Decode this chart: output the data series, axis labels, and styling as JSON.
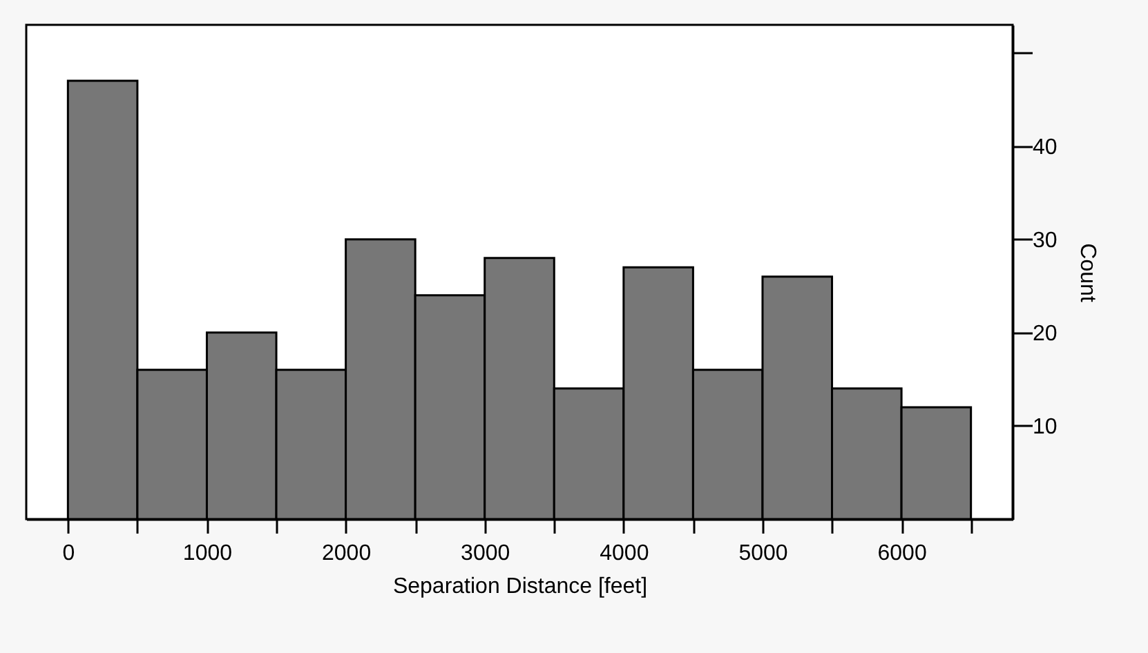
{
  "chart_data": {
    "type": "histogram",
    "xlabel": "Separation Distance [feet]",
    "ylabel": "Count",
    "bins": [
      0,
      500,
      1000,
      1500,
      2000,
      2500,
      3000,
      3500,
      4000,
      4500,
      5000,
      5500,
      6000,
      6500
    ],
    "values": [
      47,
      16,
      20,
      16,
      30,
      24,
      28,
      14,
      27,
      16,
      26,
      14,
      12
    ],
    "color": "#777777",
    "xlim": [
      -300,
      6800
    ],
    "xticks": [
      0,
      {
        "value": 500,
        "label": null
      },
      1000,
      {
        "value": 1500,
        "label": null
      },
      2000,
      {
        "value": 2500,
        "label": null
      },
      3000,
      {
        "value": 3500,
        "label": null
      },
      4000,
      {
        "value": 4500,
        "label": null
      },
      5000,
      {
        "value": 5500,
        "label": null
      },
      6000,
      {
        "value": 6500,
        "label": null
      }
    ],
    "ylim": [
      0,
      53
    ],
    "yticks": [
      10,
      20,
      30,
      40,
      {
        "value": 50,
        "label": null
      }
    ],
    "grid": false
  }
}
